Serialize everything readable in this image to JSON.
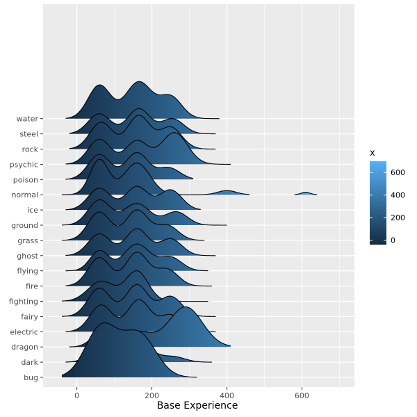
{
  "chart_data": {
    "type": "ridgeline",
    "title": "",
    "xlabel": "Base Experience",
    "ylabel": "",
    "xlim": [
      -90,
      740
    ],
    "x_ticks": [
      0,
      200,
      400,
      600
    ],
    "x_tick_labels": [
      "0",
      "200",
      "400",
      "600"
    ],
    "grid": true,
    "fill_gradient": {
      "variable": "x",
      "low_color": "#132B43",
      "high_color": "#56B1F7",
      "range": [
        -40,
        700
      ]
    },
    "legend": {
      "title": "x",
      "position": "right",
      "labels": [
        "0",
        "200",
        "400",
        "600"
      ],
      "values": [
        0,
        200,
        400,
        600
      ]
    },
    "categories": [
      "bug",
      "dark",
      "dragon",
      "electric",
      "fairy",
      "fighting",
      "fire",
      "flying",
      "ghost",
      "grass",
      "ground",
      "ice",
      "normal",
      "poison",
      "psychic",
      "rock",
      "steel",
      "water"
    ],
    "series": [
      {
        "category": "bug",
        "range": [
          -40,
          320
        ],
        "components": [
          [
            65,
            42,
            3.0
          ],
          [
            165,
            45,
            2.6
          ]
        ]
      },
      {
        "category": "dark",
        "range": [
          -30,
          360
        ],
        "components": [
          [
            65,
            30,
            0.9
          ],
          [
            160,
            40,
            1.1
          ],
          [
            260,
            30,
            0.3
          ]
        ]
      },
      {
        "category": "dragon",
        "range": [
          -20,
          410
        ],
        "components": [
          [
            60,
            25,
            0.7
          ],
          [
            160,
            40,
            0.9
          ],
          [
            290,
            45,
            2.4
          ]
        ]
      },
      {
        "category": "electric",
        "range": [
          -30,
          370
        ],
        "components": [
          [
            65,
            30,
            1.6
          ],
          [
            165,
            30,
            1.9
          ],
          [
            250,
            30,
            1.0
          ]
        ]
      },
      {
        "category": "fairy",
        "range": [
          -40,
          370
        ],
        "components": [
          [
            60,
            30,
            1.7
          ],
          [
            160,
            30,
            1.9
          ],
          [
            250,
            30,
            1.2
          ]
        ]
      },
      {
        "category": "fighting",
        "range": [
          -40,
          350
        ],
        "components": [
          [
            65,
            35,
            1.2
          ],
          [
            160,
            30,
            1.8
          ]
        ]
      },
      {
        "category": "fire",
        "range": [
          -30,
          360
        ],
        "components": [
          [
            60,
            30,
            1.7
          ],
          [
            160,
            30,
            2.0
          ],
          [
            240,
            30,
            1.0
          ]
        ]
      },
      {
        "category": "flying",
        "range": [
          -30,
          350
        ],
        "components": [
          [
            60,
            25,
            1.2
          ],
          [
            160,
            35,
            1.6
          ],
          [
            250,
            30,
            0.8
          ]
        ]
      },
      {
        "category": "ghost",
        "range": [
          -30,
          370
        ],
        "components": [
          [
            60,
            30,
            1.3
          ],
          [
            160,
            30,
            1.6
          ],
          [
            250,
            30,
            1.0
          ]
        ]
      },
      {
        "category": "grass",
        "range": [
          -40,
          340
        ],
        "components": [
          [
            60,
            30,
            1.7
          ],
          [
            160,
            30,
            1.8
          ],
          [
            240,
            30,
            0.9
          ]
        ]
      },
      {
        "category": "ground",
        "range": [
          -40,
          400
        ],
        "components": [
          [
            60,
            30,
            1.5
          ],
          [
            160,
            35,
            1.3
          ],
          [
            265,
            30,
            0.8
          ]
        ]
      },
      {
        "category": "ice",
        "range": [
          -30,
          330
        ],
        "components": [
          [
            60,
            30,
            1.3
          ],
          [
            160,
            30,
            1.4
          ],
          [
            250,
            30,
            1.2
          ]
        ]
      },
      {
        "category": "normal",
        "range": [
          -40,
          460
        ],
        "components": [
          [
            60,
            25,
            2.1
          ],
          [
            160,
            35,
            1.9
          ],
          [
            400,
            25,
            0.25
          ]
        ]
      },
      {
        "category": "normal",
        "range": [
          580,
          640
        ],
        "components": [
          [
            610,
            12,
            0.15
          ]
        ]
      },
      {
        "category": "poison",
        "range": [
          -30,
          310
        ],
        "components": [
          [
            60,
            30,
            1.5
          ],
          [
            160,
            30,
            1.6
          ],
          [
            245,
            30,
            0.7
          ]
        ]
      },
      {
        "category": "psychic",
        "range": [
          -30,
          410
        ],
        "components": [
          [
            60,
            30,
            1.5
          ],
          [
            160,
            30,
            1.4
          ],
          [
            260,
            35,
            1.9
          ]
        ]
      },
      {
        "category": "rock",
        "range": [
          -20,
          370
        ],
        "components": [
          [
            65,
            30,
            1.6
          ],
          [
            165,
            30,
            2.0
          ],
          [
            250,
            30,
            1.3
          ]
        ]
      },
      {
        "category": "steel",
        "range": [
          -20,
          370
        ],
        "components": [
          [
            60,
            30,
            1.2
          ],
          [
            165,
            30,
            1.5
          ],
          [
            255,
            30,
            0.9
          ]
        ]
      },
      {
        "category": "water",
        "range": [
          -30,
          380
        ],
        "components": [
          [
            60,
            30,
            2.0
          ],
          [
            165,
            35,
            2.2
          ],
          [
            250,
            30,
            1.3
          ]
        ]
      }
    ]
  }
}
